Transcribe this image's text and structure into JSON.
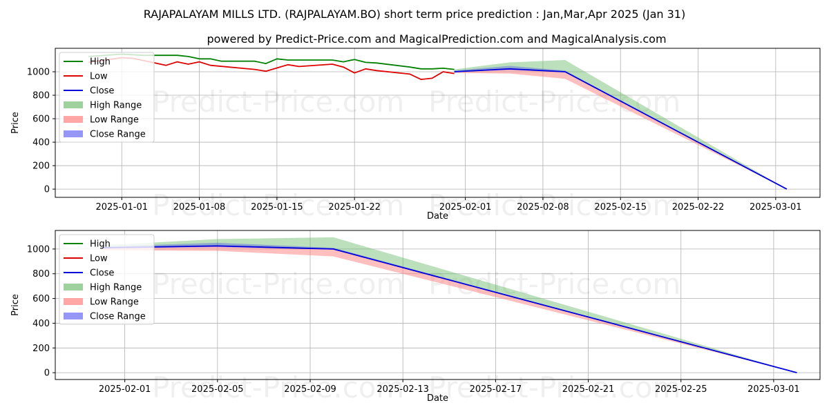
{
  "title": "RAJAPALAYAM MILLS LTD. (RAJPALAYAM.BO) short term price prediction : Jan,Mar,Apr 2025 (Jan 31)",
  "subtitle": "powered by Predict-Price.com and MagicalPrediction.com and MagicalAnalysis.com",
  "watermark": "Predict-Price.com",
  "colors": {
    "high": "#008000",
    "low": "#e00000",
    "close": "#0000dd",
    "high_range": "#6ab86a",
    "low_range": "#ff8080",
    "close_range": "#4040ee",
    "grid": "#b0b0b0"
  },
  "chart_data": [
    {
      "type": "line",
      "xlabel": "Date",
      "ylabel": "Price",
      "xlim": [
        "2024-12-26",
        "2025-03-05"
      ],
      "ylim": [
        -70,
        1200
      ],
      "x_ticks": [
        "2025-01-01",
        "2025-01-08",
        "2025-01-15",
        "2025-01-22",
        "2025-02-01",
        "2025-02-08",
        "2025-02-15",
        "2025-02-22",
        "2025-03-01"
      ],
      "y_ticks": [
        0,
        200,
        400,
        600,
        800,
        1000
      ],
      "legend": [
        "High",
        "Low",
        "Close",
        "High Range",
        "Low Range",
        "Close Range"
      ],
      "legend_position": "upper-left",
      "grid": true,
      "series": [
        {
          "name": "High",
          "points": [
            [
              "2024-12-29",
              1130
            ],
            [
              "2025-01-01",
              1150
            ],
            [
              "2025-01-03",
              1140
            ],
            [
              "2025-01-05",
              1140
            ],
            [
              "2025-01-06",
              1140
            ],
            [
              "2025-01-07",
              1130
            ],
            [
              "2025-01-08",
              1110
            ],
            [
              "2025-01-09",
              1110
            ],
            [
              "2025-01-10",
              1090
            ],
            [
              "2025-01-13",
              1090
            ],
            [
              "2025-01-14",
              1070
            ],
            [
              "2025-01-15",
              1110
            ],
            [
              "2025-01-16",
              1100
            ],
            [
              "2025-01-20",
              1100
            ],
            [
              "2025-01-21",
              1085
            ],
            [
              "2025-01-22",
              1105
            ],
            [
              "2025-01-23",
              1080
            ],
            [
              "2025-01-24",
              1075
            ],
            [
              "2025-01-27",
              1040
            ],
            [
              "2025-01-28",
              1025
            ],
            [
              "2025-01-29",
              1025
            ],
            [
              "2025-01-30",
              1030
            ],
            [
              "2025-01-31",
              1020
            ]
          ]
        },
        {
          "name": "Low",
          "points": [
            [
              "2024-12-29",
              1080
            ],
            [
              "2025-01-01",
              1120
            ],
            [
              "2025-01-02",
              1115
            ],
            [
              "2025-01-03",
              1095
            ],
            [
              "2025-01-04",
              1075
            ],
            [
              "2025-01-05",
              1055
            ],
            [
              "2025-01-06",
              1085
            ],
            [
              "2025-01-07",
              1065
            ],
            [
              "2025-01-08",
              1085
            ],
            [
              "2025-01-09",
              1055
            ],
            [
              "2025-01-13",
              1020
            ],
            [
              "2025-01-14",
              1005
            ],
            [
              "2025-01-16",
              1060
            ],
            [
              "2025-01-17",
              1045
            ],
            [
              "2025-01-20",
              1065
            ],
            [
              "2025-01-21",
              1040
            ],
            [
              "2025-01-22",
              990
            ],
            [
              "2025-01-23",
              1025
            ],
            [
              "2025-01-24",
              1010
            ],
            [
              "2025-01-27",
              980
            ],
            [
              "2025-01-28",
              935
            ],
            [
              "2025-01-29",
              945
            ],
            [
              "2025-01-30",
              1000
            ],
            [
              "2025-01-31",
              985
            ]
          ]
        },
        {
          "name": "Close",
          "points": [
            [
              "2025-01-31",
              1000
            ],
            [
              "2025-02-05",
              1025
            ],
            [
              "2025-02-10",
              1000
            ],
            [
              "2025-03-02",
              0
            ]
          ]
        },
        {
          "name": "High Range",
          "upper": [
            [
              "2025-01-31",
              1020
            ],
            [
              "2025-02-05",
              1080
            ],
            [
              "2025-02-10",
              1100
            ],
            [
              "2025-03-02",
              0
            ]
          ],
          "lower": [
            [
              "2025-01-31",
              1000
            ],
            [
              "2025-02-05",
              1025
            ],
            [
              "2025-02-10",
              1000
            ],
            [
              "2025-03-02",
              0
            ]
          ]
        },
        {
          "name": "Low Range",
          "upper": [
            [
              "2025-01-31",
              1000
            ],
            [
              "2025-02-05",
              1025
            ],
            [
              "2025-02-10",
              1000
            ],
            [
              "2025-03-02",
              0
            ]
          ],
          "lower": [
            [
              "2025-01-31",
              990
            ],
            [
              "2025-02-05",
              985
            ],
            [
              "2025-02-10",
              940
            ],
            [
              "2025-03-02",
              0
            ]
          ]
        },
        {
          "name": "Close Range",
          "upper": [
            [
              "2025-01-31",
              1010
            ],
            [
              "2025-02-05",
              1050
            ],
            [
              "2025-02-10",
              1010
            ],
            [
              "2025-03-02",
              0
            ]
          ],
          "lower": [
            [
              "2025-01-31",
              1000
            ],
            [
              "2025-02-05",
              1015
            ],
            [
              "2025-02-10",
              995
            ],
            [
              "2025-03-02",
              0
            ]
          ]
        }
      ]
    },
    {
      "type": "line",
      "xlabel": "Date",
      "ylabel": "Price",
      "xlim": [
        "2025-01-29",
        "2025-03-03"
      ],
      "ylim": [
        -55,
        1150
      ],
      "x_ticks": [
        "2025-02-01",
        "2025-02-05",
        "2025-02-09",
        "2025-02-13",
        "2025-02-17",
        "2025-02-21",
        "2025-02-25",
        "2025-03-01"
      ],
      "y_ticks": [
        0,
        200,
        400,
        600,
        800,
        1000
      ],
      "legend": [
        "High",
        "Low",
        "Close",
        "High Range",
        "Low Range",
        "Close Range"
      ],
      "legend_position": "upper-left",
      "grid": true,
      "series": [
        {
          "name": "Close",
          "points": [
            [
              "2025-01-31",
              1010
            ],
            [
              "2025-02-05",
              1025
            ],
            [
              "2025-02-10",
              1000
            ],
            [
              "2025-03-02",
              0
            ]
          ]
        },
        {
          "name": "High Range",
          "upper": [
            [
              "2025-01-31",
              1030
            ],
            [
              "2025-02-05",
              1080
            ],
            [
              "2025-02-10",
              1095
            ],
            [
              "2025-03-02",
              0
            ]
          ],
          "lower": [
            [
              "2025-01-31",
              1010
            ],
            [
              "2025-02-05",
              1025
            ],
            [
              "2025-02-10",
              1000
            ],
            [
              "2025-03-02",
              0
            ]
          ]
        },
        {
          "name": "Low Range",
          "upper": [
            [
              "2025-01-31",
              1010
            ],
            [
              "2025-02-05",
              1025
            ],
            [
              "2025-02-10",
              1000
            ],
            [
              "2025-03-02",
              0
            ]
          ],
          "lower": [
            [
              "2025-01-31",
              990
            ],
            [
              "2025-02-05",
              985
            ],
            [
              "2025-02-10",
              940
            ],
            [
              "2025-03-02",
              0
            ]
          ]
        },
        {
          "name": "Close Range",
          "upper": [
            [
              "2025-01-31",
              1020
            ],
            [
              "2025-02-05",
              1050
            ],
            [
              "2025-02-10",
              1010
            ],
            [
              "2025-03-02",
              0
            ]
          ],
          "lower": [
            [
              "2025-01-31",
              1005
            ],
            [
              "2025-02-05",
              1015
            ],
            [
              "2025-02-10",
              995
            ],
            [
              "2025-03-02",
              0
            ]
          ]
        }
      ]
    }
  ]
}
